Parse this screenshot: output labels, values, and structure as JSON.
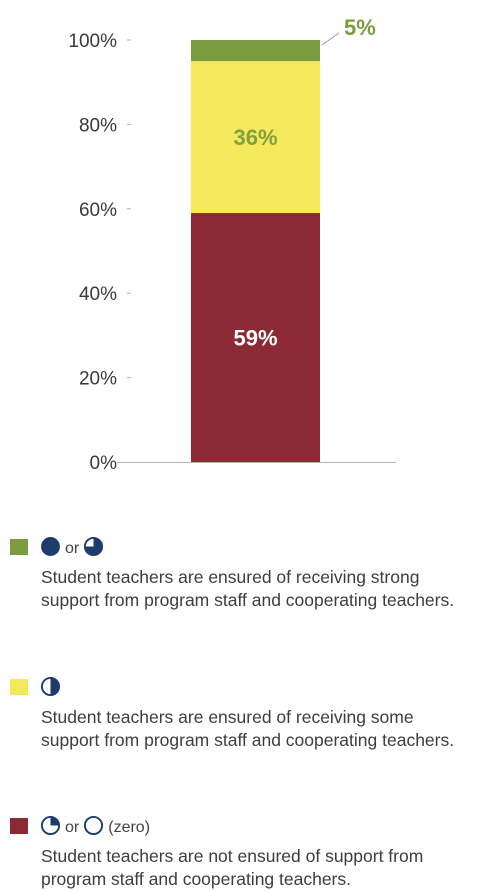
{
  "chart_data": {
    "type": "bar",
    "stacked": true,
    "categories": [
      ""
    ],
    "series": [
      {
        "values": [
          59
        ],
        "color": "#8b2a35",
        "label": "59%",
        "label_color": "#ffffff"
      },
      {
        "values": [
          36
        ],
        "color": "#f4e95c",
        "label": "36%",
        "label_color": "#82a03e"
      },
      {
        "values": [
          5
        ],
        "color": "#7a9c3f",
        "label": "5%",
        "label_color": "#7a9c3f"
      }
    ],
    "ylim": [
      0,
      100
    ],
    "yticks": [
      {
        "value": 0,
        "label": "0%"
      },
      {
        "value": 20,
        "label": "20%"
      },
      {
        "value": 40,
        "label": "40%"
      },
      {
        "value": 60,
        "label": "60%"
      },
      {
        "value": 80,
        "label": "80%"
      },
      {
        "value": 100,
        "label": "100%"
      }
    ]
  },
  "legend": {
    "items": [
      {
        "swatch_color": "#7a9c3f",
        "icons": [
          "full-circle",
          "three-quarter-circle"
        ],
        "connector": "or",
        "suffix": "",
        "description": "Student teachers are ensured of receiving strong support from program staff and cooperating teachers."
      },
      {
        "swatch_color": "#f4e95c",
        "icons": [
          "half-circle"
        ],
        "connector": "",
        "suffix": "",
        "description": "Student teachers are ensured of receiving some support from program staff and cooperating teachers."
      },
      {
        "swatch_color": "#8b2a35",
        "icons": [
          "quarter-circle",
          "empty-circle"
        ],
        "connector": "or",
        "suffix": "(zero)",
        "description": "Student teachers are not ensured of support from program staff and cooperating teachers."
      }
    ]
  }
}
